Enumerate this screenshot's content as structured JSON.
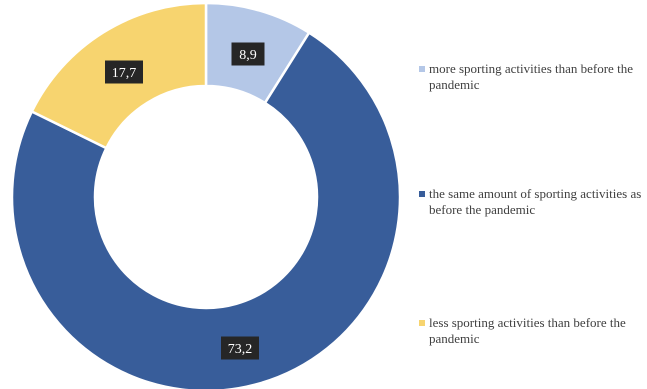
{
  "chart_data": {
    "type": "donut",
    "title": "",
    "series": [
      {
        "name": "more sporting activities than before the pandemic",
        "value": 8.9,
        "label": "8,9",
        "color": "#b4c7e7"
      },
      {
        "name": "the same amount of sporting activities as before the pandemic",
        "value": 73.2,
        "label": "73,2",
        "color": "#385d9a"
      },
      {
        "name": "less sporting activities than before the pandemic",
        "value": 17.7,
        "label": "17,7",
        "color": "#f7d46f"
      }
    ],
    "legend_position": "right",
    "label_style": {
      "background": "#262626",
      "text_color": "#ffffff"
    }
  }
}
